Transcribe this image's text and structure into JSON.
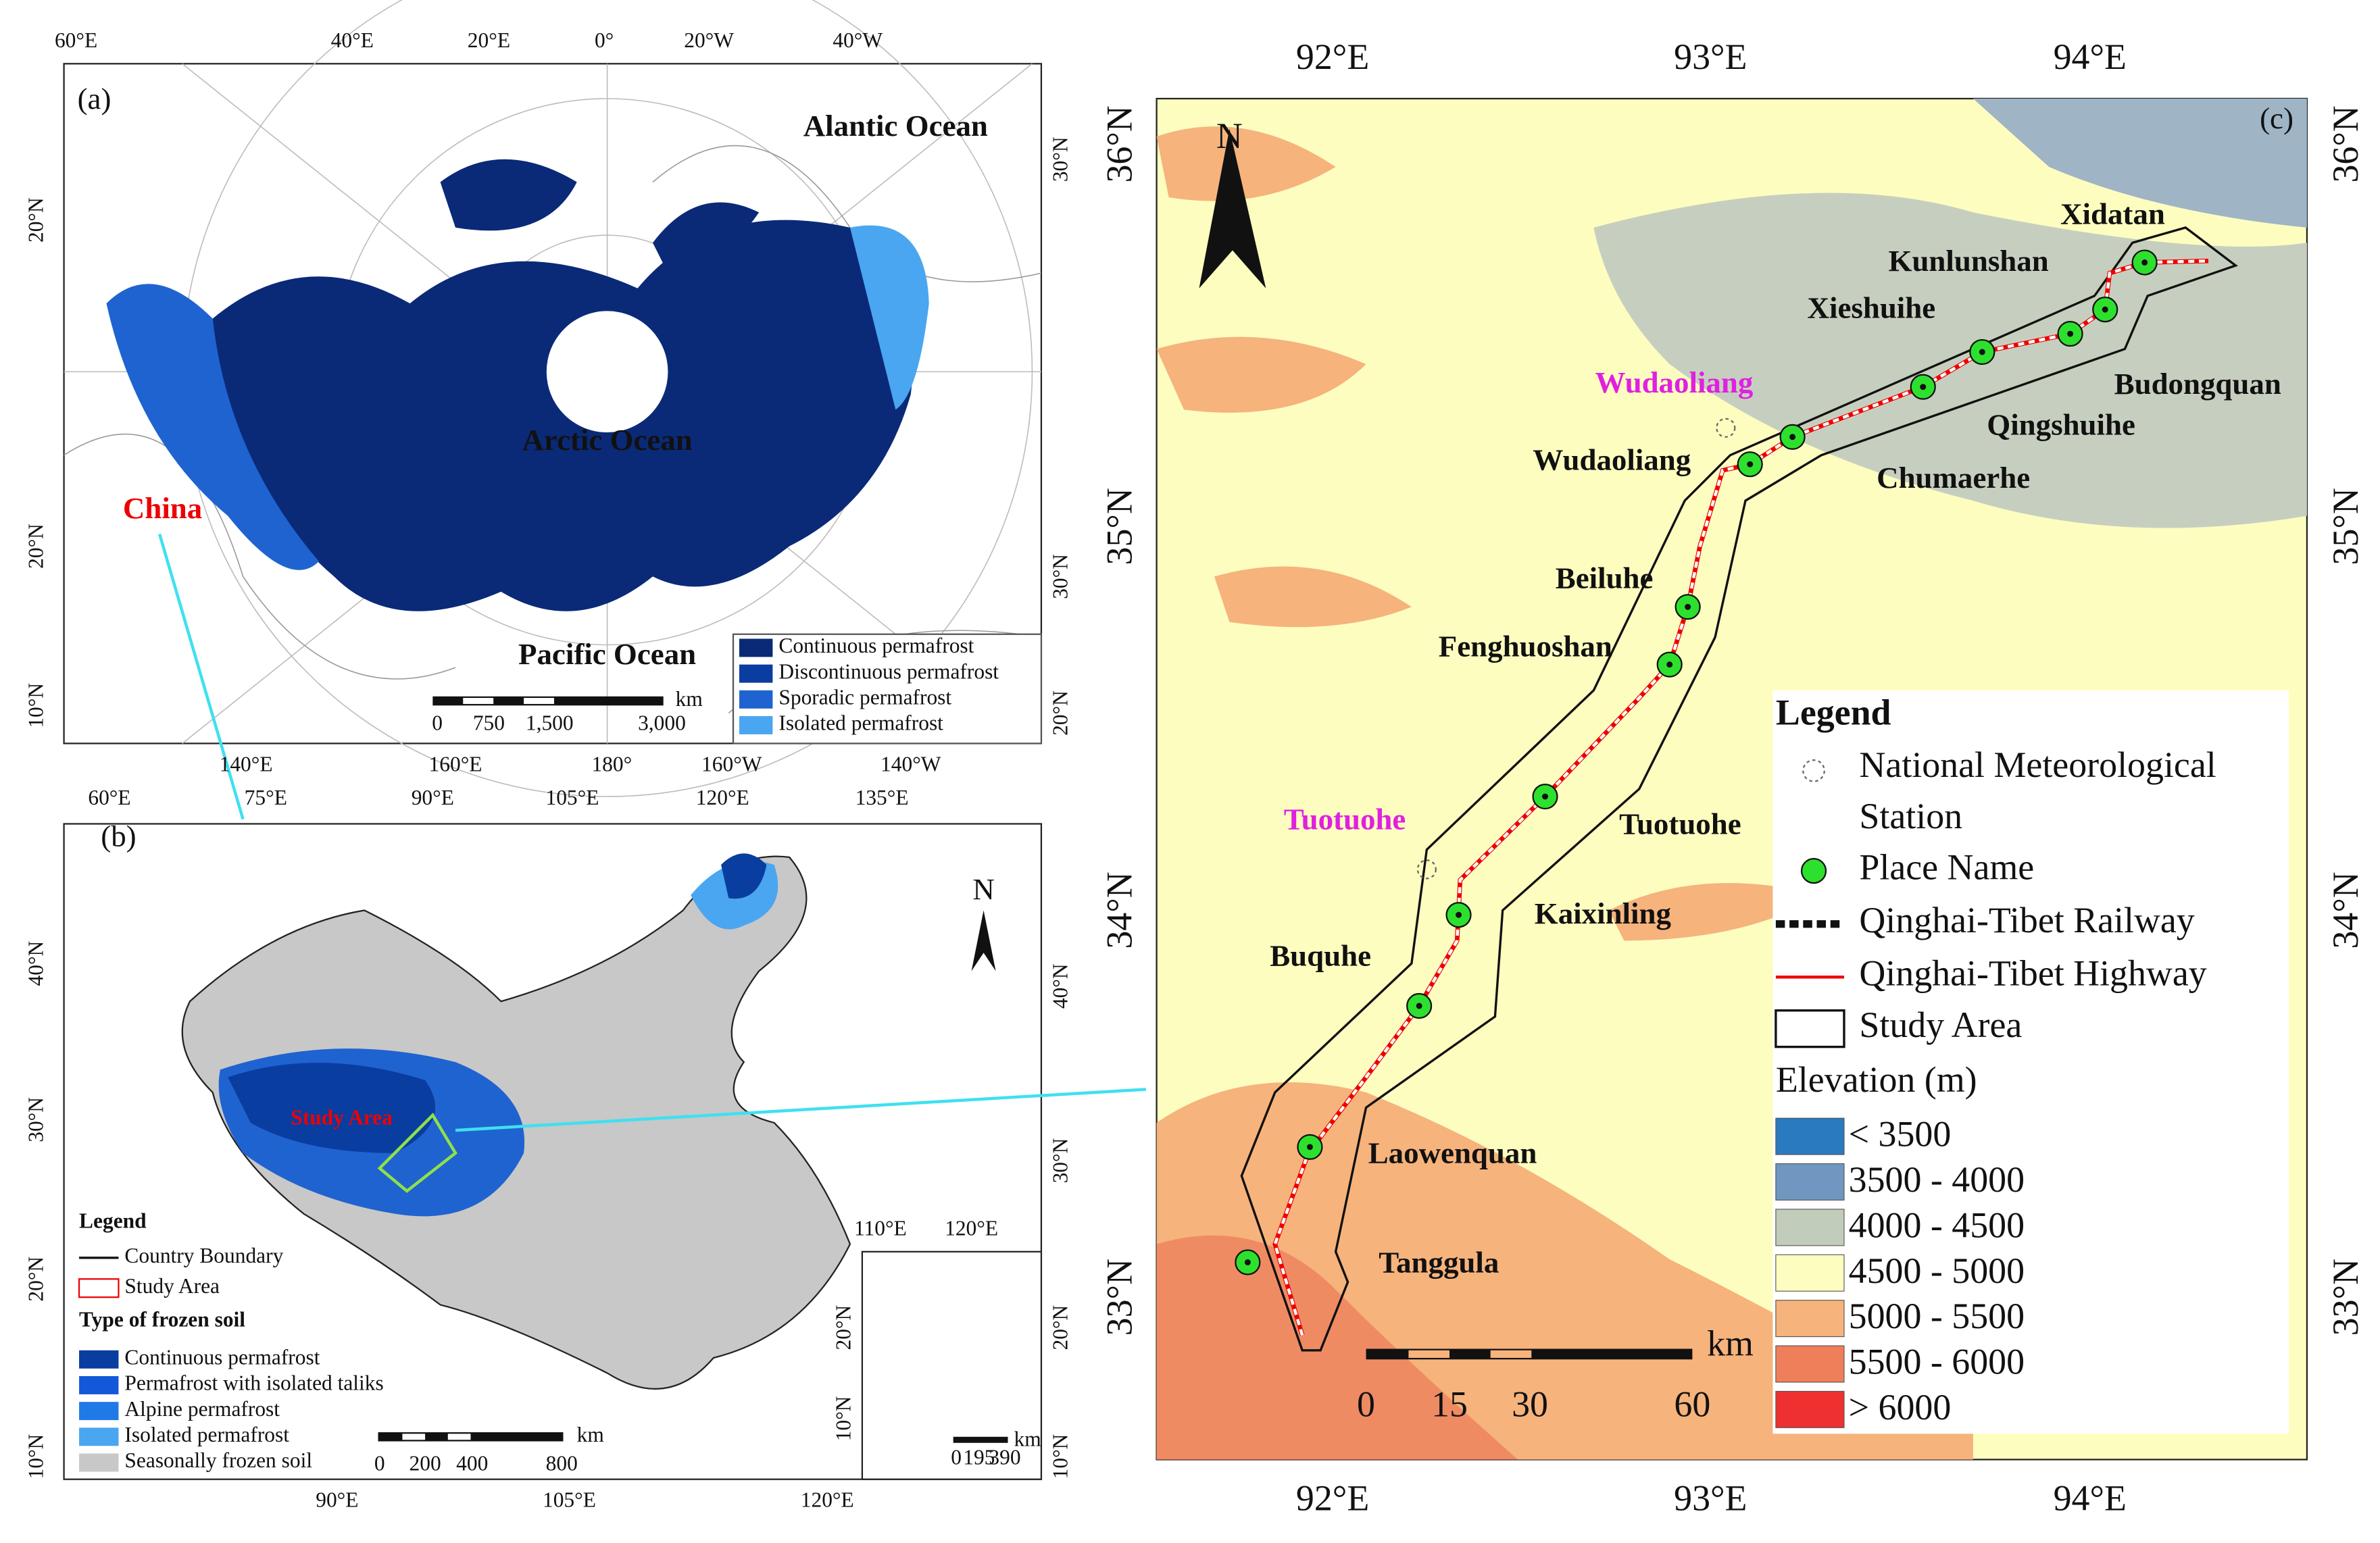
{
  "panel_a": {
    "label": "(a)",
    "top_ticks": [
      "60°E",
      "40°E",
      "20°E",
      "0°",
      "20°W",
      "40°W"
    ],
    "left_ticks": [
      "20°N",
      "20°N",
      "10°N"
    ],
    "right_ticks": [
      "30°N",
      "30°N",
      "20°N"
    ],
    "bottom_ticks": [
      "140°E",
      "160°E",
      "180°",
      "160°W",
      "140°W"
    ],
    "oceans": [
      "Alantic Ocean",
      "Arctic Ocean",
      "Pacific Ocean"
    ],
    "china_label": "China",
    "legend": [
      "Continuous permafrost",
      "Discontinuous permafrost",
      "Sporadic permafrost",
      "Isolated permafrost"
    ],
    "scale": {
      "unit": "km",
      "ticks": [
        "0",
        "750",
        "1,500",
        "3,000"
      ]
    }
  },
  "panel_b": {
    "label": "(b)",
    "top_ticks": [
      "60°E",
      "75°E",
      "90°E",
      "105°E",
      "120°E",
      "135°E"
    ],
    "left_ticks": [
      "40°N",
      "30°N",
      "20°N",
      "10°N"
    ],
    "right_ticks": [
      "40°N",
      "30°N",
      "20°N",
      "10°N"
    ],
    "bottom_ticks": [
      "90°E",
      "105°E",
      "120°E"
    ],
    "north": "N",
    "study_area_label": "Study Area",
    "legend": {
      "title": "Legend",
      "boundaries": [
        "Country Boundary",
        "Study Area"
      ],
      "soil_title": "Type of frozen soil",
      "soil_types": [
        "Continuous permafrost",
        "Permafrost with isolated taliks",
        "Alpine permafrost",
        "Isolated permafrost",
        "Seasonally frozen soil"
      ]
    },
    "scale": {
      "unit": "km",
      "ticks": [
        "0",
        "200",
        "400",
        "800"
      ]
    },
    "inset": {
      "top_ticks": [
        "110°E",
        "120°E"
      ],
      "left_ticks": [
        "20°N",
        "10°N"
      ],
      "scale": {
        "unit": "km",
        "ticks": [
          "0",
          "195",
          "390"
        ]
      }
    }
  },
  "panel_c": {
    "label": "(c)",
    "top_ticks": [
      "92°E",
      "93°E",
      "94°E"
    ],
    "bottom_ticks": [
      "92°E",
      "93°E",
      "94°E"
    ],
    "left_ticks": [
      "36°N",
      "35°N",
      "34°N",
      "33°N"
    ],
    "right_ticks": [
      "36°N",
      "35°N",
      "34°N",
      "33°N"
    ],
    "north": "N",
    "stations": [
      "Wudaoliang",
      "Tuotuohe"
    ],
    "places": [
      "Xidatan",
      "Kunlunshan",
      "Xieshuihe",
      "Budongquan",
      "Qingshuihe",
      "Chumaerhe",
      "Wudaoliang",
      "Beiluhe",
      "Fenghuoshan",
      "Tuotuohe",
      "Kaixinling",
      "Buquhe",
      "Laowenquan",
      "Tanggula"
    ],
    "legend": {
      "title": "Legend",
      "items": [
        "National Meteorological Station",
        "Place Name",
        "Qinghai-Tibet Railway",
        "Qinghai-Tibet Highway",
        "Study Area"
      ],
      "elevation_title": "Elevation (m)",
      "elevation_classes": [
        "< 3500",
        "3500 - 4000",
        "4000 - 4500",
        "4500 - 5000",
        "5000 - 5500",
        "5500 - 6000",
        "> 6000"
      ]
    },
    "scale": {
      "unit": "km",
      "ticks": [
        "0",
        "15",
        "30",
        "60"
      ]
    }
  }
}
